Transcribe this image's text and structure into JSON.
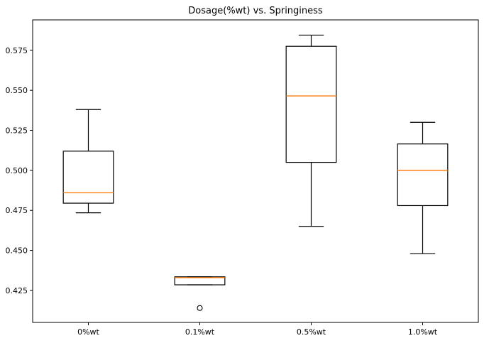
{
  "chart_data": {
    "type": "box",
    "title": "Dosage(%wt) vs. Springiness",
    "xlabel": "",
    "ylabel": "",
    "categories": [
      "0%wt",
      "0.1%wt",
      "0.5%wt",
      "1.0%wt"
    ],
    "ylim": [
      0.405,
      0.594
    ],
    "yticks": [
      0.425,
      0.45,
      0.475,
      0.5,
      0.525,
      0.55,
      0.575
    ],
    "ytick_labels": [
      "0.425",
      "0.450",
      "0.475",
      "0.500",
      "0.525",
      "0.550",
      "0.575"
    ],
    "boxes": [
      {
        "category": "0%wt",
        "whisker_low": 0.4735,
        "q1": 0.4795,
        "median": 0.486,
        "q3": 0.512,
        "whisker_high": 0.538,
        "outliers": []
      },
      {
        "category": "0.1%wt",
        "whisker_low": 0.4285,
        "q1": 0.4285,
        "median": 0.433,
        "q3": 0.4335,
        "whisker_high": 0.4335,
        "outliers": [
          0.414
        ]
      },
      {
        "category": "0.5%wt",
        "whisker_low": 0.465,
        "q1": 0.505,
        "median": 0.5465,
        "q3": 0.5775,
        "whisker_high": 0.5845,
        "outliers": []
      },
      {
        "category": "1.0%wt",
        "whisker_low": 0.448,
        "q1": 0.478,
        "median": 0.5,
        "q3": 0.5165,
        "whisker_high": 0.53,
        "outliers": []
      }
    ],
    "colors": {
      "box": "#000000",
      "median": "#ff7f0e",
      "axes": "#000000"
    },
    "grid": false
  }
}
